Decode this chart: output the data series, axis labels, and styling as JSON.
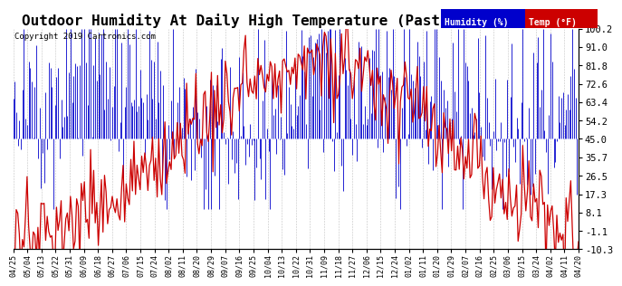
{
  "title": "Outdoor Humidity At Daily High Temperature (Past Year) 20190425",
  "copyright": "Copyright 2019 Cartronics.com",
  "legend_humidity": "Humidity (%)",
  "legend_temp": "Temp (°F)",
  "legend_humidity_bg": "#0000cc",
  "legend_temp_bg": "#cc0000",
  "y_right_labels": [
    100.2,
    91.0,
    81.8,
    72.6,
    63.4,
    54.2,
    45.0,
    35.7,
    26.5,
    17.3,
    8.1,
    -1.1,
    -10.3
  ],
  "ylim": [
    -10.3,
    100.2
  ],
  "background_color": "#ffffff",
  "plot_bg": "#ffffff",
  "grid_color": "#aaaaaa",
  "title_fontsize": 11.5,
  "x_tick_labels": [
    "04/25",
    "05/04",
    "05/13",
    "05/22",
    "05/31",
    "06/09",
    "06/18",
    "06/27",
    "07/06",
    "07/15",
    "07/24",
    "08/02",
    "08/11",
    "08/20",
    "08/29",
    "09/07",
    "09/16",
    "09/25",
    "10/04",
    "10/13",
    "10/22",
    "10/31",
    "11/09",
    "11/18",
    "11/27",
    "12/06",
    "12/15",
    "12/24",
    "01/02",
    "01/11",
    "01/20",
    "01/29",
    "02/07",
    "02/16",
    "02/25",
    "03/06",
    "03/15",
    "03/24",
    "04/02",
    "04/11",
    "04/20"
  ],
  "num_points": 366,
  "humidity_color": "#0000cc",
  "temp_color": "#cc0000"
}
